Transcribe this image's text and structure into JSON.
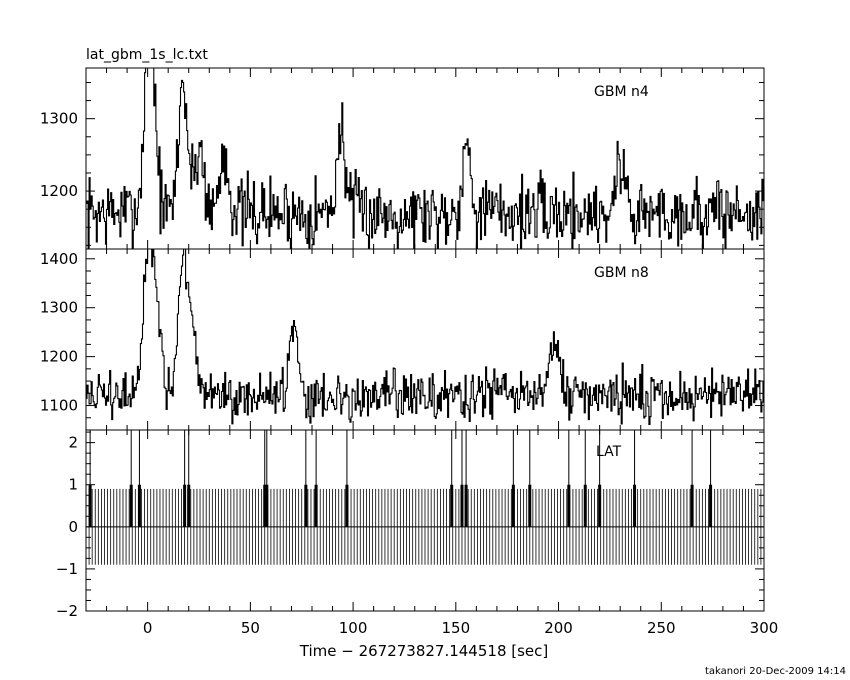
{
  "figure": {
    "title": "lat_gbm_1s_lc.txt",
    "xlabel": "Time − 267273827.144518 [sec]",
    "footer": "takanori 20-Dec-2009 14:14"
  },
  "chart_data": [
    {
      "type": "line",
      "panel_label": "GBM n4",
      "xlim": [
        -30,
        300
      ],
      "ylim": [
        1120,
        1370
      ],
      "yticks": [
        1200,
        1300
      ],
      "xticks": [
        0,
        50,
        100,
        150,
        200,
        250,
        300
      ],
      "baseline": 1170,
      "noise_amplitude": 35,
      "features": [
        {
          "t": 0,
          "value": 1340
        },
        {
          "t": 2,
          "value": 1300
        },
        {
          "t": 17,
          "value": 1350
        },
        {
          "t": 25,
          "value": 1260
        },
        {
          "t": 37,
          "value": 1250
        },
        {
          "t": 94,
          "value": 1280
        },
        {
          "t": 155,
          "value": 1260
        },
        {
          "t": 230,
          "value": 1240
        }
      ]
    },
    {
      "type": "line",
      "panel_label": "GBM n8",
      "xlim": [
        -30,
        300
      ],
      "ylim": [
        1050,
        1420
      ],
      "yticks": [
        1100,
        1200,
        1300,
        1400
      ],
      "xticks": [
        0,
        50,
        100,
        150,
        200,
        250,
        300
      ],
      "baseline": 1120,
      "noise_amplitude": 35,
      "features": [
        {
          "t": 0,
          "value": 1400
        },
        {
          "t": 4,
          "value": 1300
        },
        {
          "t": 17,
          "value": 1400
        },
        {
          "t": 22,
          "value": 1230
        },
        {
          "t": 71,
          "value": 1270
        },
        {
          "t": 198,
          "value": 1240
        }
      ]
    },
    {
      "type": "bar",
      "panel_label": "LAT",
      "xlim": [
        -30,
        300
      ],
      "ylim": [
        -2,
        2.3
      ],
      "yticks": [
        -2,
        -1,
        0,
        1,
        2
      ],
      "xticks": [
        0,
        50,
        100,
        150,
        200,
        250,
        300
      ],
      "pulse_period_sec": 1.5,
      "pulse_range": [
        -0.9,
        0.9
      ],
      "photon_height": 1,
      "spike_height": 2.3,
      "photon_times": [
        -28,
        -8,
        -4,
        18,
        20,
        57,
        58,
        77,
        82,
        97,
        148,
        153,
        155,
        178,
        186,
        205,
        213,
        220,
        237,
        265,
        274
      ]
    }
  ]
}
